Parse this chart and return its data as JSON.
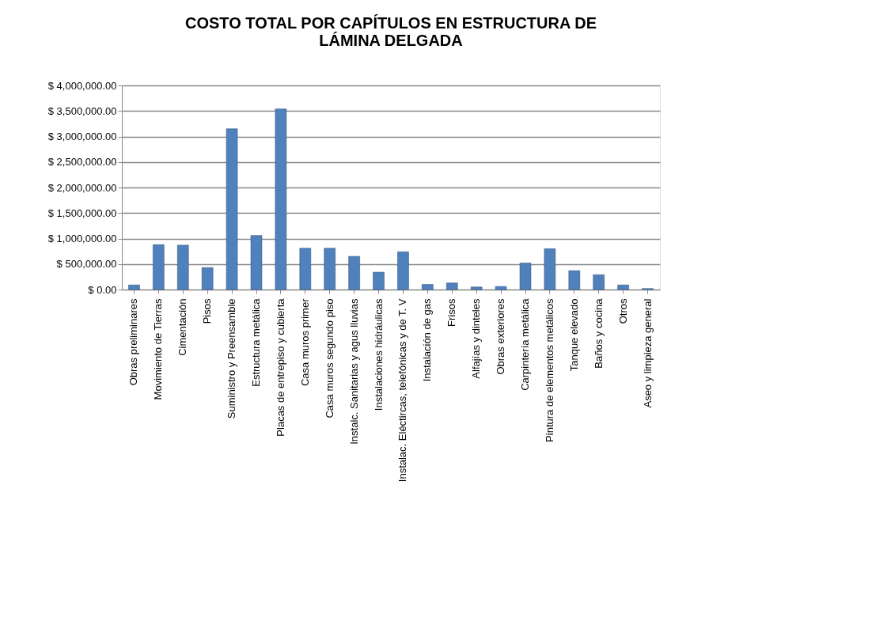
{
  "chart_data": {
    "type": "bar",
    "title": "COSTO TOTAL POR CAPÍTULOS EN ESTRUCTURA DE LÁMINA DELGADA",
    "categories": [
      "Obras preliminares",
      "Movimiento de Tierras",
      "Cimentación",
      "Pisos",
      "Suministro y Preensamble",
      "Estructura metálica",
      "Placas de entrepiso y cubierta",
      "Casa muros primer",
      "Casa muros segundo piso",
      "Instalc. Sanitarias y agus lluvias",
      "Instalaciones hidráulicas",
      "Instalac. Eléctircas, telefónicas y de T. V",
      "Instalación de gas",
      "Frisos",
      "Alfajías y dinteles",
      "Obras exteriores",
      "Carpintería metálica",
      "Pintura de elementos metálicos",
      "Tanque elevado",
      "Baños y cocina",
      "Otros",
      "Aseo y limpieza general"
    ],
    "values": [
      90000,
      880000,
      870000,
      430000,
      3150000,
      1060000,
      3540000,
      810000,
      810000,
      650000,
      340000,
      740000,
      100000,
      130000,
      50000,
      60000,
      520000,
      800000,
      370000,
      290000,
      90000,
      20000
    ],
    "color": "#4f81bd",
    "ylim": [
      0,
      4000000
    ],
    "yticks": [
      {
        "value": 0,
        "label": "$ 0.00"
      },
      {
        "value": 500000,
        "label": "$ 500,000.00"
      },
      {
        "value": 1000000,
        "label": "$ 1,000,000.00"
      },
      {
        "value": 1500000,
        "label": "$ 1,500,000.00"
      },
      {
        "value": 2000000,
        "label": "$ 2,000,000.00"
      },
      {
        "value": 2500000,
        "label": "$ 2,500,000.00"
      },
      {
        "value": 3000000,
        "label": "$ 3,000,000.00"
      },
      {
        "value": 3500000,
        "label": "$ 3,500,000.00"
      },
      {
        "value": 4000000,
        "label": "$ 4,000,000.00"
      }
    ],
    "grid": "y"
  }
}
